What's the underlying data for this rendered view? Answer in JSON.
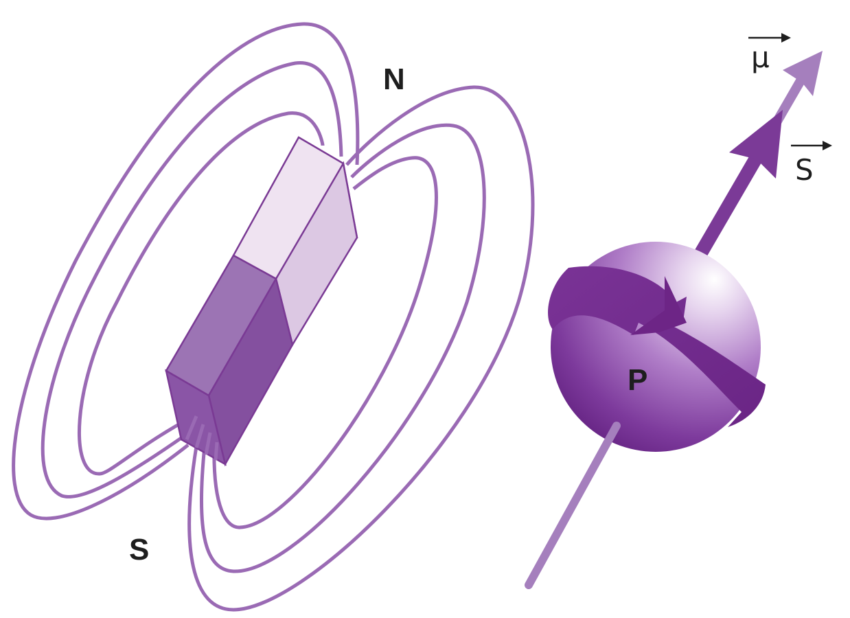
{
  "magnet": {
    "north_label": "N",
    "south_label": "S"
  },
  "proton": {
    "label": "P"
  },
  "vectors": {
    "magnetic_moment_label": "μ",
    "spin_label": "S"
  },
  "colors": {
    "field_line": "#9a6ab4",
    "magnet_light_front": "#efe3f1",
    "magnet_light_side": "#dcc8e3",
    "magnet_dark_front": "#9c74b4",
    "magnet_dark_side": "#84509f",
    "magnet_bottom": "#8a55a6",
    "proton_dark": "#6f2a8a",
    "proton_light": "#efe4f4",
    "axis_light": "#a57fbd",
    "spin_arrow": "#7b3a97",
    "text": "#1e1e1e"
  }
}
